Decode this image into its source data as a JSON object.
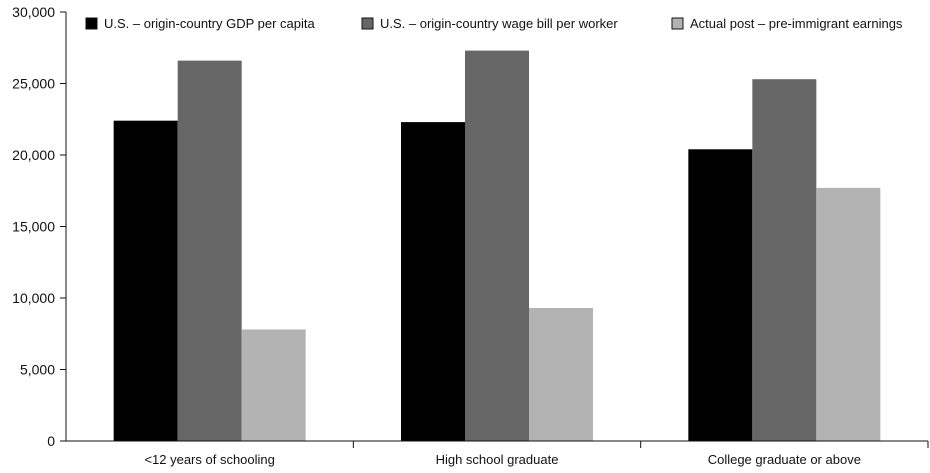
{
  "chart_data": {
    "type": "bar",
    "categories": [
      "<12 years of schooling",
      "High school graduate",
      "College graduate or above"
    ],
    "series": [
      {
        "name": "U.S. – origin-country GDP per capita",
        "values": [
          22400,
          22300,
          20400
        ],
        "color": "#000000"
      },
      {
        "name": "U.S. – origin-country wage bill per worker",
        "values": [
          26600,
          27300,
          25300
        ],
        "color": "#666666"
      },
      {
        "name": "Actual post – pre-immigrant earnings",
        "values": [
          7800,
          9300,
          17700
        ],
        "color": "#b3b3b3"
      }
    ],
    "yticks": [
      "0",
      "5,000",
      "10,000",
      "15,000",
      "20,000",
      "25,000",
      "30,000"
    ],
    "ylim": [
      0,
      30000
    ],
    "legend_position": "top"
  }
}
